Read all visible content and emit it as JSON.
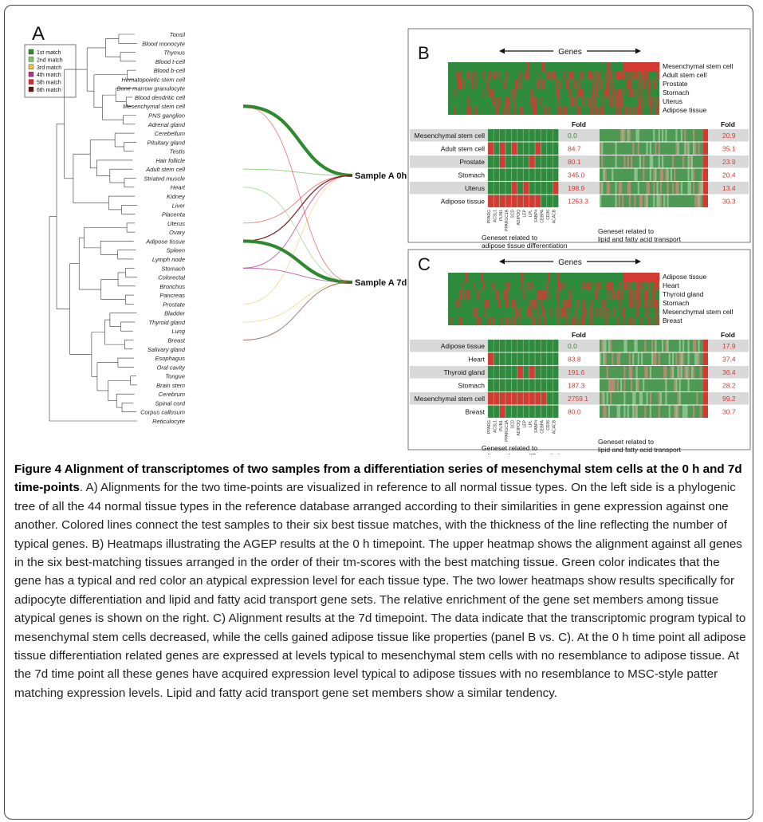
{
  "panel_labels": {
    "a": "A",
    "b": "B",
    "c": "C"
  },
  "legend": [
    {
      "label": "1st match",
      "color": "#2f8a2f"
    },
    {
      "label": "2nd match",
      "color": "#7fc86a"
    },
    {
      "label": "3rd match",
      "color": "#e6c83a"
    },
    {
      "label": "4th match",
      "color": "#b0308c"
    },
    {
      "label": "5th match",
      "color": "#e02828"
    },
    {
      "label": "6th match",
      "color": "#6e1010"
    }
  ],
  "tissues": [
    "Tonsil",
    "Blood monocyte",
    "Thymus",
    "Blood t-cell",
    "Blood b-cell",
    "Hematopoietic stem cell",
    "Bone marrow granulocyte",
    "Blood dendritic cell",
    "Mesenchymal stem cell",
    "PNS ganglion",
    "Adrenal gland",
    "Cerebellum",
    "Pituitary gland",
    "Testis",
    "Hair follicle",
    "Adult stem cell",
    "Striated muscle",
    "Heart",
    "Kidney",
    "Liver",
    "Placenta",
    "Uterus",
    "Ovary",
    "Adipose tissue",
    "Spleen",
    "Lymph node",
    "Stomach",
    "Colorectal",
    "Bronchus",
    "Pancreas",
    "Prostate",
    "Bladder",
    "Thyroid gland",
    "Lung",
    "Breast",
    "Salivary gland",
    "Esophagus",
    "Oral cavity",
    "Tongue",
    "Brain stem",
    "Cerebrum",
    "Spinal cord",
    "Corpus callosum",
    "Reticulocyte"
  ],
  "samples": {
    "s0": "Sample A 0h",
    "s7": "Sample A 7d"
  },
  "panel_b": {
    "genes_label": "Genes",
    "top_tissues": [
      "Mesenchymal stem cell",
      "Adult stem cell",
      "Prostate",
      "Stomach",
      "Uterus",
      "Adipose tissue"
    ],
    "fold_header": "Fold",
    "rows": [
      {
        "tissue": "Mesenchymal stem cell",
        "fold_left": "0.0",
        "fold_right": "20.9"
      },
      {
        "tissue": "Adult stem cell",
        "fold_left": "84.7",
        "fold_right": "35.1"
      },
      {
        "tissue": "Prostate",
        "fold_left": "80.1",
        "fold_right": "23.9"
      },
      {
        "tissue": "Stomach",
        "fold_left": "345.0",
        "fold_right": "20.4"
      },
      {
        "tissue": "Uterus",
        "fold_left": "198.9",
        "fold_right": "13.4"
      },
      {
        "tissue": "Adipose tissue",
        "fold_left": "1253.3",
        "fold_right": "30.3"
      }
    ],
    "genes": [
      "PPARG",
      "ACSL1",
      "PLIN1",
      "PPARGC1A",
      "SCD",
      "ADIPOQ",
      "LEP",
      "LPL",
      "FABP4",
      "CEBPA",
      "CD36",
      "ACACB"
    ],
    "caption_left": "Geneset related to adipose tissue differentiation",
    "caption_right": "Geneset related to lipid and fatty acid transport"
  },
  "panel_c": {
    "genes_label": "Genes",
    "top_tissues": [
      "Adipose tissue",
      "Heart",
      "Thyroid gland",
      "Stomach",
      "Mesenchymal stem cell",
      "Breast"
    ],
    "fold_header": "Fold",
    "rows": [
      {
        "tissue": "Adipose tissue",
        "fold_left": "0.0",
        "fold_right": "17.9"
      },
      {
        "tissue": "Heart",
        "fold_left": "83.8",
        "fold_right": "37.4"
      },
      {
        "tissue": "Thyroid gland",
        "fold_left": "191.6",
        "fold_right": "36.4"
      },
      {
        "tissue": "Stomach",
        "fold_left": "187.3",
        "fold_right": "28.2"
      },
      {
        "tissue": "Mesenchymal stem cell",
        "fold_left": "2759.1",
        "fold_right": "99.2"
      },
      {
        "tissue": "Breast",
        "fold_left": "80.0",
        "fold_right": "30.7"
      }
    ],
    "genes": [
      "PPARG",
      "ACSL1",
      "PLIN1",
      "PPARGC1A",
      "SCD",
      "ADIPOQ",
      "LEP",
      "LPL",
      "FABP4",
      "CEBPA",
      "CD36",
      "ACACB"
    ],
    "caption_left": "Geneset related to adipose tissue differentiation",
    "caption_right": "Geneset related to lipid and fatty acid transport"
  },
  "colors": {
    "typical": "#2e8b3e",
    "atypical": "#d43a32",
    "gray_row": "#d9d9d9"
  },
  "caption": {
    "bold": "Figure 4 Alignment of transcriptomes of two samples from a differentiation series of mesenchymal stem cells at the 0 h and 7d time-points",
    "body": ". A) Alignments for the two time-points are visualized in reference to all normal tissue types. On the left side is a phylogenic tree of all the 44 normal tissue types in the reference database arranged according to their similarities in gene expression against one another. Colored lines connect the test samples to their six best tissue matches, with the thickness of the line reflecting the number of typical genes. B) Heatmaps illustrating the AGEP results at the 0 h timepoint. The upper heatmap shows the alignment against all genes in the six best-matching tissues arranged in the order of their tm-scores with the best matching tissue. Green color indicates that the gene has a typical and red color an atypical expression level for each tissue type. The two lower heatmaps show results specifically for adipocyte differentiation and lipid and fatty acid transport gene sets. The relative enrichment of the gene set members among tissue atypical genes is shown on the right. C) Alignment results at the 7d timepoint. The data indicate that the transcriptomic program typical to mesenchymal stem cells decreased, while the cells gained adipose tissue like properties (panel B vs. C). At the 0 h time point all adipose tissue differentiation related genes are expressed at levels typical to mesenchymal stem cells with no resemblance to adipose tissue. At the 7d time point all these genes have acquired expression level typical to adipose tissues with no resemblance to MSC-style patter matching expression levels. Lipid and fatty acid transport gene set members show a similar tendency."
  }
}
